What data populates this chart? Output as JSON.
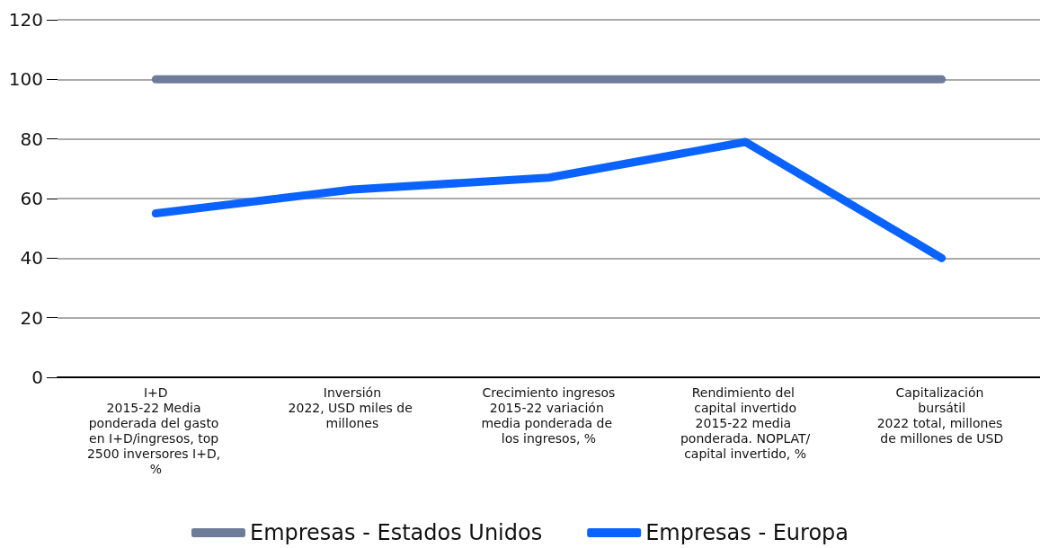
{
  "chart_data": {
    "type": "line",
    "categories": [
      "I+D\n2015-22 Media ponderada del gasto en I+D/ingresos, top 2500 inversores I+D, %",
      "Inversión\n2022, USD miles de millones",
      "Crecimiento ingresos\n2015-22 variación media ponderada de los ingresos, %",
      "Rendimiento del capital invertido\n2015-22 media ponderada. NOPLAT/capital invertido, %",
      "Capitalización bursátil\n2022 total, millones de millones de USD"
    ],
    "series": [
      {
        "name": "Empresas - Estados Unidos",
        "color": "#6e7b99",
        "values": [
          100,
          100,
          100,
          100,
          100
        ]
      },
      {
        "name": "Empresas - Europa",
        "color": "#0b63ff",
        "values": [
          55,
          63,
          67,
          79,
          40
        ]
      }
    ],
    "ylim": [
      0,
      120
    ],
    "yticks": [
      0,
      20,
      40,
      60,
      80,
      100,
      120
    ],
    "grid": "y",
    "legend": "bottom",
    "line_style": "solid"
  }
}
